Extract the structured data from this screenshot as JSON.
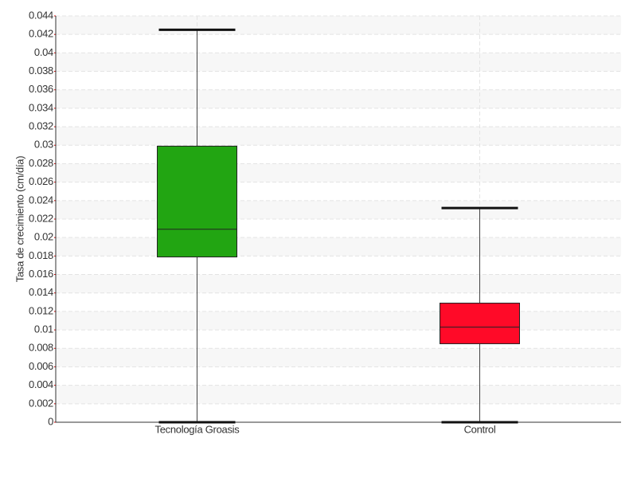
{
  "chart_data": {
    "type": "box",
    "y_label": "Tasa de crecimiento (cm/día)",
    "categories": [
      "Tecnología Groasis",
      "Control"
    ],
    "boxes": [
      {
        "min": 0,
        "q1": 0.0179,
        "median": 0.0209,
        "q3": 0.0299,
        "max": 0.0425,
        "color": "#22a512"
      },
      {
        "min": 0,
        "q1": 0.0085,
        "median": 0.0103,
        "q3": 0.0129,
        "max": 0.0232,
        "color": "#ff0a28"
      }
    ],
    "ylim": [
      0,
      0.044
    ],
    "yticks": [
      0,
      0.002,
      0.004,
      0.006,
      0.008,
      0.01,
      0.012,
      0.014,
      0.016,
      0.018,
      0.02,
      0.022,
      0.024,
      0.026,
      0.028,
      0.03,
      0.032,
      0.034,
      0.036,
      0.038,
      0.04,
      0.042,
      0.044
    ],
    "grid": true
  }
}
